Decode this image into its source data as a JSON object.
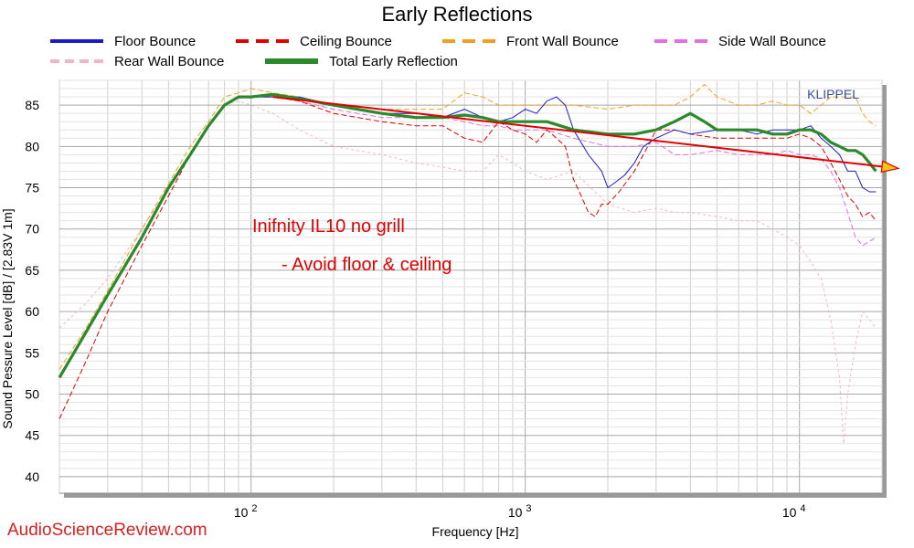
{
  "chart_data": {
    "type": "line",
    "title": "Early Reflections",
    "xlabel": "Frequency [Hz]",
    "ylabel": "Sound Pessure Level [dB]  / [2.83V 1m]",
    "x_scale": "log",
    "xlim": [
      20,
      20000
    ],
    "ylim": [
      38,
      88
    ],
    "y_ticks": [
      40,
      45,
      50,
      55,
      60,
      65,
      70,
      75,
      80,
      85
    ],
    "x_tick_labels": [
      {
        "value": 100,
        "label": "10 2"
      },
      {
        "value": 1000,
        "label": "10 3"
      },
      {
        "value": 10000,
        "label": "10 4"
      }
    ],
    "grid": true,
    "legend_position": "top",
    "series": [
      {
        "name": "Floor Bounce",
        "color": "#1a1acc",
        "style": "solid",
        "points": [
          [
            20,
            52
          ],
          [
            25,
            57.5
          ],
          [
            30,
            62
          ],
          [
            40,
            69
          ],
          [
            50,
            75
          ],
          [
            60,
            79
          ],
          [
            70,
            82.5
          ],
          [
            80,
            85
          ],
          [
            90,
            86
          ],
          [
            100,
            86
          ],
          [
            120,
            86
          ],
          [
            150,
            86
          ],
          [
            200,
            85
          ],
          [
            300,
            84
          ],
          [
            400,
            84
          ],
          [
            500,
            83.5
          ],
          [
            600,
            84.5
          ],
          [
            700,
            83.5
          ],
          [
            800,
            83
          ],
          [
            900,
            83.5
          ],
          [
            1000,
            84.5
          ],
          [
            1100,
            84
          ],
          [
            1200,
            85.5
          ],
          [
            1300,
            86
          ],
          [
            1400,
            85
          ],
          [
            1500,
            82
          ],
          [
            1700,
            79
          ],
          [
            1900,
            77
          ],
          [
            2000,
            75
          ],
          [
            2100,
            75.5
          ],
          [
            2300,
            76.5
          ],
          [
            2500,
            78
          ],
          [
            2700,
            80
          ],
          [
            3000,
            81
          ],
          [
            3500,
            82
          ],
          [
            4000,
            81.5
          ],
          [
            5000,
            82
          ],
          [
            6000,
            82
          ],
          [
            7000,
            81.5
          ],
          [
            8000,
            82
          ],
          [
            9000,
            82
          ],
          [
            10000,
            82
          ],
          [
            11000,
            82.5
          ],
          [
            12000,
            81
          ],
          [
            13000,
            80
          ],
          [
            14000,
            79
          ],
          [
            15000,
            77
          ],
          [
            16000,
            77
          ],
          [
            17000,
            75
          ],
          [
            18000,
            74.5
          ],
          [
            19000,
            74.5
          ]
        ]
      },
      {
        "name": "Ceiling Bounce",
        "color": "#e00000",
        "style": "dashed",
        "points": [
          [
            20,
            47
          ],
          [
            25,
            54
          ],
          [
            30,
            60
          ],
          [
            40,
            68
          ],
          [
            50,
            74
          ],
          [
            60,
            79
          ],
          [
            70,
            82.5
          ],
          [
            80,
            85
          ],
          [
            90,
            86
          ],
          [
            100,
            86
          ],
          [
            120,
            86
          ],
          [
            150,
            85.5
          ],
          [
            200,
            84
          ],
          [
            300,
            83
          ],
          [
            400,
            82.5
          ],
          [
            500,
            82.5
          ],
          [
            600,
            81
          ],
          [
            700,
            80.5
          ],
          [
            800,
            83
          ],
          [
            900,
            82
          ],
          [
            1000,
            81.5
          ],
          [
            1100,
            80.5
          ],
          [
            1200,
            82
          ],
          [
            1300,
            81
          ],
          [
            1400,
            80
          ],
          [
            1500,
            76
          ],
          [
            1600,
            74
          ],
          [
            1700,
            72
          ],
          [
            1800,
            71.5
          ],
          [
            1900,
            73
          ],
          [
            2000,
            73
          ],
          [
            2200,
            74.5
          ],
          [
            2500,
            77
          ],
          [
            2800,
            80
          ],
          [
            3000,
            82
          ],
          [
            3500,
            82
          ],
          [
            4000,
            81.5
          ],
          [
            5000,
            81
          ],
          [
            6000,
            81
          ],
          [
            7000,
            81
          ],
          [
            8000,
            81
          ],
          [
            9000,
            81
          ],
          [
            10000,
            81.5
          ],
          [
            11000,
            81
          ],
          [
            12000,
            80
          ],
          [
            13000,
            78
          ],
          [
            14000,
            76
          ],
          [
            15000,
            74
          ],
          [
            16000,
            73
          ],
          [
            17000,
            71.5
          ],
          [
            18000,
            72
          ],
          [
            19000,
            71
          ]
        ]
      },
      {
        "name": "Front Wall Bounce",
        "color": "#f0a020",
        "style": "dashed",
        "points": [
          [
            20,
            53
          ],
          [
            25,
            58
          ],
          [
            30,
            62.5
          ],
          [
            40,
            70
          ],
          [
            50,
            75.5
          ],
          [
            60,
            80
          ],
          [
            70,
            83
          ],
          [
            80,
            86
          ],
          [
            90,
            86.5
          ],
          [
            100,
            87
          ],
          [
            120,
            86.5
          ],
          [
            150,
            86
          ],
          [
            200,
            85
          ],
          [
            300,
            84.5
          ],
          [
            400,
            84.5
          ],
          [
            500,
            84.5
          ],
          [
            600,
            86.5
          ],
          [
            700,
            86
          ],
          [
            800,
            85
          ],
          [
            900,
            85
          ],
          [
            1000,
            85
          ],
          [
            1200,
            85
          ],
          [
            1500,
            85
          ],
          [
            2000,
            84.5
          ],
          [
            2500,
            85
          ],
          [
            3000,
            85
          ],
          [
            3500,
            85
          ],
          [
            4000,
            86
          ],
          [
            4500,
            87.5
          ],
          [
            5000,
            86
          ],
          [
            6000,
            85
          ],
          [
            7000,
            85
          ],
          [
            8000,
            85.5
          ],
          [
            9000,
            85
          ],
          [
            10000,
            85
          ],
          [
            11000,
            84
          ],
          [
            12000,
            85
          ],
          [
            13000,
            86
          ],
          [
            14000,
            86
          ],
          [
            15000,
            86
          ],
          [
            16000,
            86
          ],
          [
            17000,
            84
          ],
          [
            18000,
            83
          ],
          [
            19000,
            82.5
          ]
        ]
      },
      {
        "name": "Side Wall Bounce",
        "color": "#e070e0",
        "style": "dashed",
        "points": [
          [
            20,
            52
          ],
          [
            25,
            57.5
          ],
          [
            30,
            62
          ],
          [
            40,
            69
          ],
          [
            50,
            75
          ],
          [
            60,
            79
          ],
          [
            70,
            82.5
          ],
          [
            80,
            85
          ],
          [
            90,
            86
          ],
          [
            100,
            86
          ],
          [
            120,
            86
          ],
          [
            150,
            85.5
          ],
          [
            200,
            84.5
          ],
          [
            300,
            83.5
          ],
          [
            400,
            83.5
          ],
          [
            500,
            83.5
          ],
          [
            600,
            83
          ],
          [
            700,
            82.5
          ],
          [
            800,
            82.5
          ],
          [
            900,
            82
          ],
          [
            1000,
            82
          ],
          [
            1200,
            82
          ],
          [
            1500,
            81
          ],
          [
            2000,
            80
          ],
          [
            2500,
            80
          ],
          [
            3000,
            80.5
          ],
          [
            3500,
            79
          ],
          [
            4000,
            79
          ],
          [
            5000,
            79.5
          ],
          [
            6000,
            79
          ],
          [
            7000,
            79
          ],
          [
            8000,
            79
          ],
          [
            9000,
            79.5
          ],
          [
            10000,
            79
          ],
          [
            11000,
            79
          ],
          [
            12000,
            78.5
          ],
          [
            13000,
            77
          ],
          [
            14000,
            75
          ],
          [
            15000,
            72
          ],
          [
            16000,
            69
          ],
          [
            17000,
            68
          ],
          [
            18000,
            68.5
          ],
          [
            19000,
            69
          ]
        ]
      },
      {
        "name": "Rear Wall Bounce",
        "color": "#f4b4c4",
        "style": "dashed",
        "points": [
          [
            20,
            58
          ],
          [
            25,
            61
          ],
          [
            30,
            64
          ],
          [
            40,
            70
          ],
          [
            50,
            75
          ],
          [
            60,
            79
          ],
          [
            70,
            82.5
          ],
          [
            80,
            85
          ],
          [
            90,
            85.5
          ],
          [
            100,
            85
          ],
          [
            120,
            84
          ],
          [
            150,
            82
          ],
          [
            200,
            80
          ],
          [
            300,
            79
          ],
          [
            400,
            78
          ],
          [
            500,
            77.5
          ],
          [
            600,
            77
          ],
          [
            700,
            77
          ],
          [
            800,
            79
          ],
          [
            900,
            78
          ],
          [
            1000,
            77
          ],
          [
            1200,
            76
          ],
          [
            1500,
            77
          ],
          [
            2000,
            73
          ],
          [
            2500,
            72
          ],
          [
            3000,
            72.5
          ],
          [
            3500,
            72
          ],
          [
            4000,
            72
          ],
          [
            5000,
            71.5
          ],
          [
            6000,
            71
          ],
          [
            7000,
            71
          ],
          [
            8000,
            70
          ],
          [
            9000,
            69
          ],
          [
            10000,
            68
          ],
          [
            11000,
            66
          ],
          [
            12000,
            64
          ],
          [
            13000,
            59
          ],
          [
            14000,
            52
          ],
          [
            14500,
            44
          ],
          [
            15000,
            50
          ],
          [
            16000,
            56
          ],
          [
            17000,
            60
          ],
          [
            18000,
            59
          ],
          [
            19000,
            58
          ]
        ]
      },
      {
        "name": "Total Early Reflection",
        "color": "#2a8a2a",
        "style": "solid-thick",
        "points": [
          [
            20,
            52
          ],
          [
            25,
            57.5
          ],
          [
            30,
            62
          ],
          [
            40,
            69
          ],
          [
            50,
            75
          ],
          [
            60,
            79
          ],
          [
            70,
            82.5
          ],
          [
            80,
            85
          ],
          [
            90,
            86
          ],
          [
            100,
            86
          ],
          [
            120,
            86.3
          ],
          [
            150,
            85.8
          ],
          [
            200,
            85
          ],
          [
            300,
            84
          ],
          [
            400,
            83.5
          ],
          [
            500,
            83.5
          ],
          [
            600,
            83.8
          ],
          [
            700,
            83.5
          ],
          [
            800,
            83
          ],
          [
            900,
            83
          ],
          [
            1000,
            83
          ],
          [
            1200,
            83
          ],
          [
            1500,
            82
          ],
          [
            2000,
            81.5
          ],
          [
            2500,
            81.5
          ],
          [
            3000,
            82
          ],
          [
            3500,
            83
          ],
          [
            4000,
            84
          ],
          [
            4500,
            83
          ],
          [
            5000,
            82
          ],
          [
            6000,
            82
          ],
          [
            7000,
            82
          ],
          [
            8000,
            81.5
          ],
          [
            9000,
            81.5
          ],
          [
            10000,
            82
          ],
          [
            11000,
            82
          ],
          [
            12000,
            81.5
          ],
          [
            13000,
            80.5
          ],
          [
            14000,
            80
          ],
          [
            15000,
            79.5
          ],
          [
            16000,
            79.5
          ],
          [
            17000,
            79
          ],
          [
            18000,
            78
          ],
          [
            19000,
            77
          ]
        ]
      }
    ],
    "trend_arrow": {
      "color": "#e00000",
      "from": [
        120,
        86
      ],
      "to": [
        20000,
        78
      ]
    },
    "annotations": [
      "Inifnity IL10 no grill",
      "- Avoid floor & ceiling"
    ],
    "brand": "KLIPPEL",
    "watermark": "AudioScienceReview.com"
  }
}
